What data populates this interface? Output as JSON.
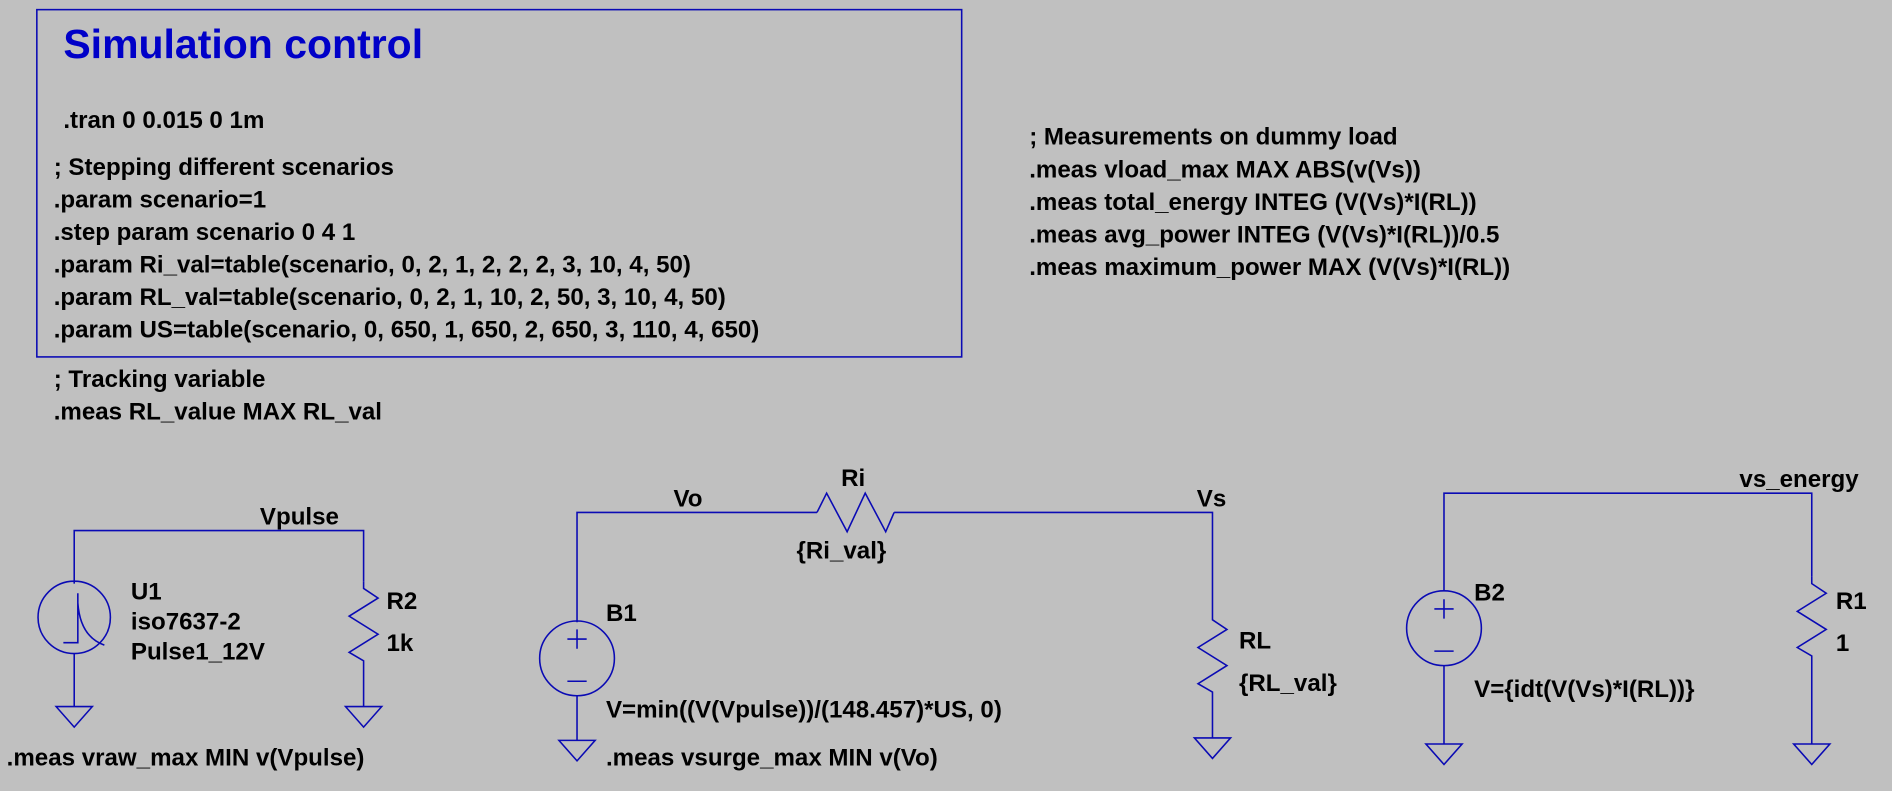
{
  "colors": {
    "background": "#c0c0c0",
    "wire": "#0a0ab4",
    "title": "#0000c8",
    "text": "#000000"
  },
  "simulation_control": {
    "title": "Simulation control",
    "tran": ".tran 0 0.015 0 1m",
    "lines": [
      "; Stepping different scenarios",
      ".param scenario=1",
      ".step param scenario 0 4 1",
      ".param Ri_val=table(scenario, 0, 2, 1, 2, 2, 2, 3, 10, 4, 50)",
      ".param RL_val=table(scenario, 0, 2, 1, 10, 2, 50, 3, 10, 4, 50)",
      ".param US=table(scenario, 0, 650, 1, 650, 2, 650, 3, 110, 4, 650)"
    ]
  },
  "tracking": [
    "; Tracking variable",
    ".meas RL_value MAX RL_val"
  ],
  "measurements": [
    "; Measurements on dummy load",
    ".meas vload_max MAX ABS(v(Vs))",
    ".meas total_energy INTEG (V(Vs)*I(RL))",
    ".meas avg_power INTEG (V(Vs)*I(RL))/0.5",
    ".meas maximum_power MAX (V(Vs)*I(RL))"
  ],
  "circuit1": {
    "net": "Vpulse",
    "source": {
      "name": "U1",
      "model": "iso7637-2",
      "value": "Pulse1_12V",
      "icon": "pulse-source-icon"
    },
    "resistor": {
      "name": "R2",
      "value": "1k"
    },
    "meas": ".meas vraw_max MIN v(Vpulse)"
  },
  "circuit2": {
    "net_left": "Vo",
    "net_right": "Vs",
    "ri": {
      "name": "Ri",
      "value": "{Ri_val}"
    },
    "source": {
      "name": "B1",
      "value": "V=min((V(Vpulse))/(148.457)*US, 0)",
      "icon": "behavioral-voltage-source-icon"
    },
    "rl": {
      "name": "RL",
      "value": "{RL_val}"
    },
    "meas": ".meas vsurge_max MIN v(Vo)"
  },
  "circuit3": {
    "net": "vs_energy",
    "source": {
      "name": "B2",
      "value": "V={idt(V(Vs)*I(RL))}",
      "icon": "behavioral-voltage-source-icon"
    },
    "resistor": {
      "name": "R1",
      "value": "1"
    }
  }
}
